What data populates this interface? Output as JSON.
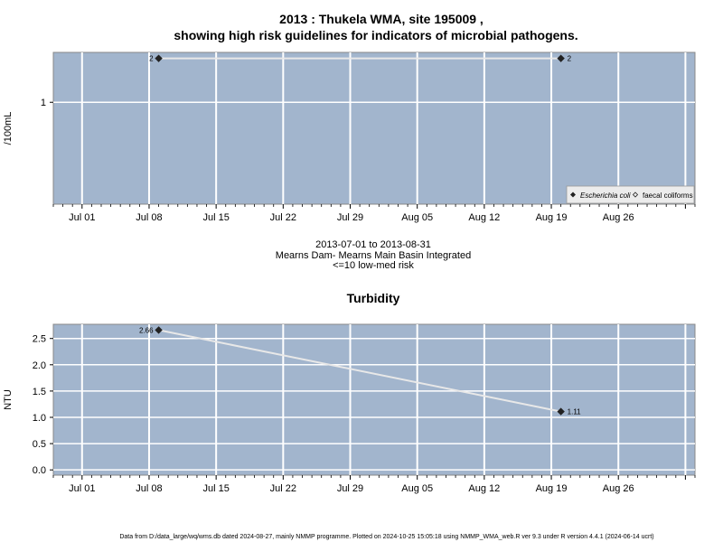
{
  "title_line1": "2013 : Thukela WMA, site 195009 ,",
  "title_line2": "showing high risk guidelines for indicators of microbial pathogens.",
  "middle_text": [
    "2013-07-01 to 2013-08-31",
    "Mearns Dam- Mearns Main Basin Integrated",
    "<=10 low-med risk"
  ],
  "footer": "Data from D:/data_large/wq/wms.db dated 2024-08-27, mainly NMMP programme. Plotted on 2024-10-25 15:05:18 using NMMP_WMA_web.R ver 9.3 under R version 4.4.1 (2024-06-14 ucrt)",
  "colors": {
    "panel": "#a2b5cd",
    "grid": "#ffffff",
    "line": "#e8e8e8",
    "point": "#222222"
  },
  "chart_data": [
    {
      "type": "line",
      "title": "",
      "ylabel": "/100mL",
      "x_dates": [
        "Jul 01",
        "Jul 08",
        "Jul 15",
        "Jul 22",
        "Jul 29",
        "Aug 05",
        "Aug 12",
        "Aug 19",
        "Aug 26"
      ],
      "x_range": [
        "2013-06-28",
        "2013-09-03"
      ],
      "y_scale": "log",
      "y_ticks": [
        {
          "value": 1,
          "label": "1"
        }
      ],
      "series": [
        {
          "name": "Escherichia coli",
          "marker": "filled-diamond",
          "points": [
            {
              "x": "2013-07-09",
              "y": 2,
              "label": "2"
            },
            {
              "x": "2013-08-20",
              "y": 2,
              "label": "2"
            }
          ]
        },
        {
          "name": "faecal coliforms",
          "marker": "open-diamond",
          "points": []
        }
      ],
      "legend_position": "bottom-right",
      "grid": true
    },
    {
      "type": "line",
      "title": "Turbidity",
      "ylabel": "NTU",
      "x_dates": [
        "Jul 01",
        "Jul 08",
        "Jul 15",
        "Jul 22",
        "Jul 29",
        "Aug 05",
        "Aug 12",
        "Aug 19",
        "Aug 26"
      ],
      "x_range": [
        "2013-06-28",
        "2013-09-03"
      ],
      "y_scale": "linear",
      "ylim": [
        -0.1,
        2.77
      ],
      "y_ticks": [
        {
          "value": 0,
          "label": "0.0"
        },
        {
          "value": 0.5,
          "label": "0.5"
        },
        {
          "value": 1,
          "label": "1.0"
        },
        {
          "value": 1.5,
          "label": "1.5"
        },
        {
          "value": 2,
          "label": "2.0"
        },
        {
          "value": 2.5,
          "label": "2.5"
        }
      ],
      "series": [
        {
          "marker": "filled-diamond",
          "points": [
            {
              "x": "2013-07-09",
              "y": 2.66,
              "label": "2.66"
            },
            {
              "x": "2013-08-20",
              "y": 1.11,
              "label": "1.11"
            }
          ]
        }
      ],
      "grid": true
    }
  ]
}
